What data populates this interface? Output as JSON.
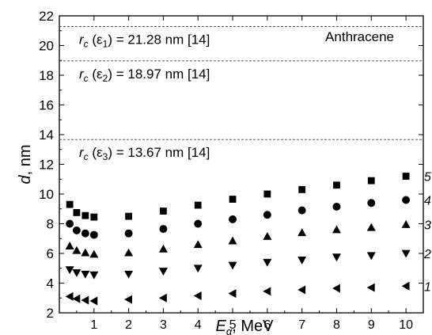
{
  "chart_data": {
    "type": "scatter",
    "title": "",
    "annotation": "Anthracene",
    "xlabel": {
      "main": "E",
      "sub": "α",
      "unit": ", MeV"
    },
    "ylabel": {
      "main": "d",
      "unit": ", nm"
    },
    "xlim": [
      0,
      10.5
    ],
    "ylim": [
      2,
      22
    ],
    "xticks": [
      1,
      2,
      3,
      4,
      5,
      6,
      7,
      8,
      9,
      10
    ],
    "yticks": [
      2,
      4,
      6,
      8,
      10,
      12,
      14,
      16,
      18,
      20,
      22
    ],
    "grid": false,
    "reference_lines": [
      {
        "y": 21.28,
        "pre": "r",
        "sub": "c",
        "mid": " (ε",
        "sub2": "1",
        "post": ") = 21.28 nm [14]"
      },
      {
        "y": 18.97,
        "pre": "r",
        "sub": "c",
        "mid": " (ε",
        "sub2": "2",
        "post": ") = 18.97 nm [14]"
      },
      {
        "y": 13.67,
        "pre": "r",
        "sub": "c",
        "mid": " (ε",
        "sub2": "3",
        "post": ") = 13.67 nm [14]"
      }
    ],
    "x": [
      0.3,
      0.5,
      0.75,
      1,
      2,
      3,
      4,
      5,
      6,
      7,
      8,
      9,
      10
    ],
    "series": [
      {
        "name": "1",
        "marker": "triangle-left",
        "values": [
          3.1,
          2.95,
          2.85,
          2.8,
          2.9,
          3.0,
          3.15,
          3.3,
          3.45,
          3.55,
          3.65,
          3.7,
          3.8
        ]
      },
      {
        "name": "2",
        "marker": "triangle-down",
        "values": [
          4.9,
          4.7,
          4.6,
          4.55,
          4.6,
          4.8,
          5.0,
          5.2,
          5.4,
          5.55,
          5.75,
          5.85,
          6.0
        ]
      },
      {
        "name": "3",
        "marker": "triangle-up",
        "values": [
          6.5,
          6.2,
          6.05,
          5.95,
          6.05,
          6.3,
          6.6,
          6.85,
          7.15,
          7.4,
          7.6,
          7.75,
          7.95
        ]
      },
      {
        "name": "4",
        "marker": "circle",
        "values": [
          8.0,
          7.55,
          7.35,
          7.25,
          7.35,
          7.65,
          8.0,
          8.3,
          8.6,
          8.9,
          9.15,
          9.4,
          9.6
        ]
      },
      {
        "name": "5",
        "marker": "square",
        "values": [
          9.3,
          8.75,
          8.55,
          8.45,
          8.5,
          8.85,
          9.25,
          9.65,
          10.0,
          10.3,
          10.6,
          10.9,
          11.2
        ]
      }
    ]
  }
}
